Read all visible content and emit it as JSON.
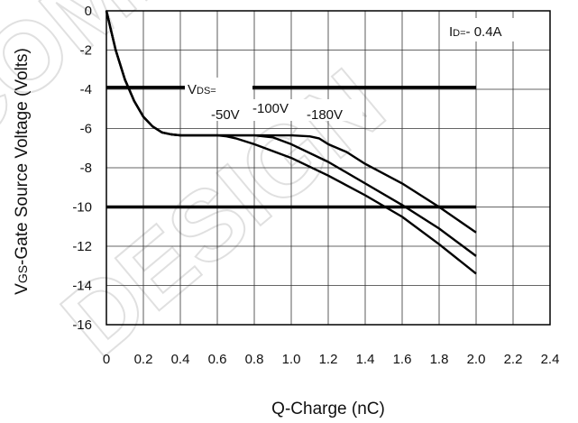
{
  "chart_data": {
    "type": "line",
    "xlabel": "Q-Charge (nC)",
    "ylabel_prefix": "V",
    "ylabel_sub": "GS",
    "ylabel_rest": "-Gate Source Voltage (Volts)",
    "xlim": [
      0,
      2.4
    ],
    "ylim": [
      -16,
      0
    ],
    "x_ticks": [
      "0",
      "0.2",
      "0.4",
      "0.6",
      "0.8",
      "1.0",
      "1.2",
      "1.4",
      "1.6",
      "1.8",
      "2.0",
      "2.2",
      "2.4"
    ],
    "y_ticks": [
      "0",
      "-2",
      "-4",
      "-6",
      "-8",
      "-10",
      "-12",
      "-14",
      "-16"
    ],
    "grid": true,
    "annotations": {
      "id_prefix": "I",
      "id_sub": "D=",
      "id_value": "- 0.4A",
      "vds_prefix": "V",
      "vds_sub": "DS=",
      "vds_values": [
        "-50V",
        "-100V",
        "-180V"
      ]
    },
    "hlines": [
      -3.9,
      -10.0
    ],
    "series": [
      {
        "name": "-50V",
        "x": [
          0.0,
          0.02,
          0.05,
          0.1,
          0.15,
          0.2,
          0.25,
          0.3,
          0.35,
          0.4,
          0.5,
          0.6,
          0.65,
          0.7,
          0.8,
          1.0,
          1.2,
          1.4,
          1.6,
          1.8,
          2.0
        ],
        "y": [
          0.0,
          -0.8,
          -2.0,
          -3.5,
          -4.6,
          -5.4,
          -5.9,
          -6.2,
          -6.3,
          -6.35,
          -6.35,
          -6.35,
          -6.4,
          -6.5,
          -6.8,
          -7.5,
          -8.4,
          -9.4,
          -10.5,
          -11.9,
          -13.4
        ]
      },
      {
        "name": "-100V",
        "x": [
          0.0,
          0.02,
          0.05,
          0.1,
          0.15,
          0.2,
          0.25,
          0.3,
          0.35,
          0.4,
          0.6,
          0.8,
          0.9,
          1.0,
          1.2,
          1.4,
          1.6,
          1.8,
          2.0
        ],
        "y": [
          0.0,
          -0.8,
          -2.0,
          -3.5,
          -4.6,
          -5.4,
          -5.9,
          -6.2,
          -6.3,
          -6.35,
          -6.35,
          -6.35,
          -6.45,
          -6.8,
          -7.7,
          -8.8,
          -9.9,
          -11.1,
          -12.5
        ]
      },
      {
        "name": "-180V",
        "x": [
          0.0,
          0.02,
          0.05,
          0.1,
          0.15,
          0.2,
          0.25,
          0.3,
          0.35,
          0.4,
          0.6,
          0.8,
          1.0,
          1.1,
          1.15,
          1.2,
          1.3,
          1.4,
          1.6,
          1.8,
          2.0
        ],
        "y": [
          0.0,
          -0.8,
          -2.0,
          -3.5,
          -4.6,
          -5.4,
          -5.9,
          -6.2,
          -6.3,
          -6.35,
          -6.35,
          -6.35,
          -6.35,
          -6.4,
          -6.5,
          -6.8,
          -7.2,
          -7.8,
          -8.8,
          -10.0,
          -11.3
        ]
      }
    ]
  }
}
